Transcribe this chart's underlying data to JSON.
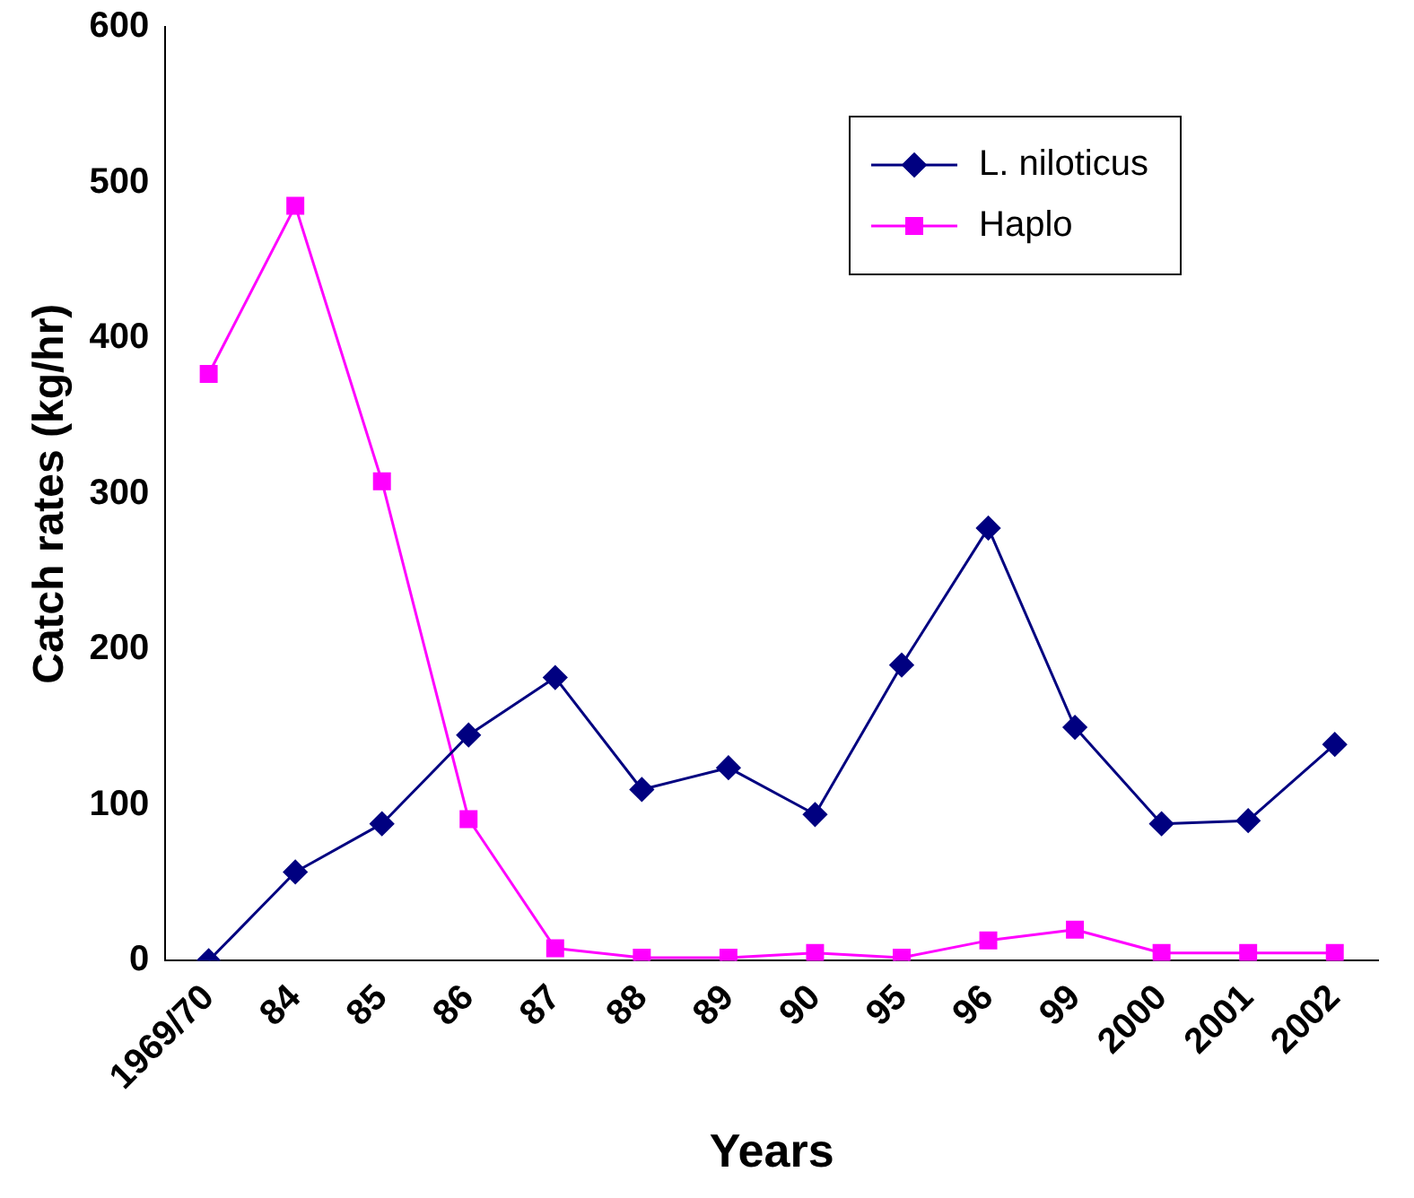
{
  "chart_data": {
    "type": "line",
    "xlabel": "Years",
    "ylabel": "Catch rates (kg/hr)",
    "categories": [
      "1969/70",
      "84",
      "85",
      "86",
      "87",
      "88",
      "89",
      "90",
      "95",
      "96",
      "99",
      "2000",
      "2001",
      "2002"
    ],
    "series": [
      {
        "name": "L. niloticus",
        "color": "#000080",
        "marker": "diamond",
        "values": [
          0,
          57,
          88,
          145,
          182,
          110,
          124,
          94,
          190,
          278,
          150,
          88,
          90,
          139
        ]
      },
      {
        "name": "Haplo",
        "color": "#ff00ff",
        "marker": "square",
        "values": [
          377,
          485,
          308,
          91,
          8,
          2,
          2,
          5,
          2,
          13,
          20,
          5,
          5,
          5
        ]
      }
    ],
    "ylim": [
      0,
      600
    ],
    "yticks": [
      0,
      100,
      200,
      300,
      400,
      500,
      600
    ],
    "grid": false,
    "legend": "top right"
  }
}
